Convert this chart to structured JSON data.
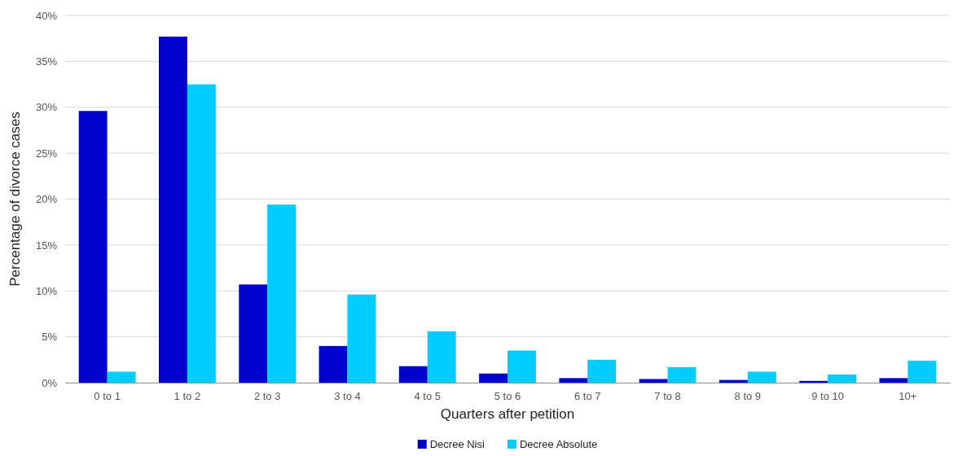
{
  "chart_data": {
    "type": "bar",
    "xlabel": "Quarters after petition",
    "ylabel": "Percentage of divorce cases",
    "categories": [
      "0 to 1",
      "1 to 2",
      "2 to 3",
      "3 to 4",
      "4 to 5",
      "5 to 6",
      "6 to 7",
      "7 to 8",
      "8 to 9",
      "9 to 10",
      "10+"
    ],
    "series": [
      {
        "name": "Decree Nisi",
        "color": "#0000cc",
        "values": [
          29.6,
          37.7,
          10.7,
          4.0,
          1.8,
          1.0,
          0.5,
          0.4,
          0.3,
          0.2,
          0.5
        ]
      },
      {
        "name": "Decree Absolute",
        "color": "#00ccff",
        "values": [
          1.2,
          32.5,
          19.4,
          9.6,
          5.6,
          3.5,
          2.5,
          1.7,
          1.2,
          0.9,
          2.4
        ]
      }
    ],
    "ylim": [
      0,
      40
    ],
    "yticks": [
      {
        "value": 0,
        "label": "0%"
      },
      {
        "value": 5,
        "label": "5%"
      },
      {
        "value": 10,
        "label": "10%"
      },
      {
        "value": 15,
        "label": "15%"
      },
      {
        "value": 20,
        "label": "20%"
      },
      {
        "value": 25,
        "label": "25%"
      },
      {
        "value": 30,
        "label": "30%"
      },
      {
        "value": 35,
        "label": "35%"
      },
      {
        "value": 40,
        "label": "40%"
      }
    ],
    "grid": "y",
    "legend": "bottom"
  }
}
